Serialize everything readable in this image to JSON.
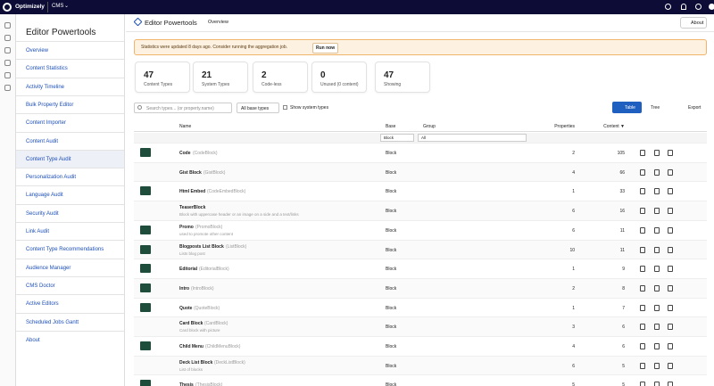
{
  "topbar": {
    "brand": "Optimizely",
    "product": "CMS"
  },
  "sidebar": {
    "title": "Editor Powertools",
    "active": 6,
    "items": [
      "Overview",
      "Content Statistics",
      "Activity Timeline",
      "Bulk Property Editor",
      "Content Importer",
      "Content Audit",
      "Content Type Audit",
      "Personalization Audit",
      "Language Audit",
      "Security Audit",
      "Link Audit",
      "Content Type Recommendations",
      "Audience Manager",
      "CMS Doctor",
      "Active Editors",
      "Scheduled Jobs Gantt",
      "About"
    ]
  },
  "header": {
    "title": "Editor Powertools",
    "tab": "Overview",
    "about": "About"
  },
  "alert": {
    "text": "Statistics were updated 8 days ago. Consider running the aggregation job.",
    "action": "Run now"
  },
  "stats": [
    {
      "value": "47",
      "label": "Content Types"
    },
    {
      "value": "21",
      "label": "System Types"
    },
    {
      "value": "2",
      "label": "Code-less"
    },
    {
      "value": "0",
      "label": "Unused (0 content)"
    },
    {
      "value": "47",
      "label": "Showing"
    }
  ],
  "toolbar": {
    "search_placeholder": "Search types... (or property.name)",
    "filter": "All base types",
    "checkbox": "Show system types",
    "views": [
      "Table",
      "Tree"
    ],
    "export": "Export"
  },
  "table": {
    "columns": [
      "Name",
      "Base",
      "Group",
      "Properties",
      "Content ▼"
    ],
    "filters": [
      "Block",
      "All"
    ],
    "rows": [
      {
        "icon": true,
        "name": "Code",
        "code": "(CodeBlock)",
        "desc": "",
        "base": "Block",
        "properties": "2",
        "content": "105"
      },
      {
        "icon": false,
        "name": "Gist Block",
        "code": "(GistBlock)",
        "desc": "",
        "base": "Block",
        "properties": "4",
        "content": "66"
      },
      {
        "icon": true,
        "name": "Html Embed",
        "code": "(CodeEmbedBlock)",
        "desc": "",
        "base": "Block",
        "properties": "1",
        "content": "33"
      },
      {
        "icon": false,
        "name": "TeaserBlock",
        "code": "",
        "desc": "Block with uppercase header or an image on a side and a text/links",
        "base": "Block",
        "properties": "6",
        "content": "16"
      },
      {
        "icon": true,
        "name": "Promo",
        "code": "(PromoBlock)",
        "desc": "used to promote other content",
        "base": "Block",
        "properties": "6",
        "content": "11"
      },
      {
        "icon": true,
        "name": "Blogposts List Block",
        "code": "(ListBlock)",
        "desc": "Lists blog post",
        "base": "Block",
        "properties": "10",
        "content": "11"
      },
      {
        "icon": true,
        "name": "Editorial",
        "code": "(EditorialBlock)",
        "desc": "",
        "base": "Block",
        "properties": "1",
        "content": "9"
      },
      {
        "icon": true,
        "name": "Intro",
        "code": "(IntroBlock)",
        "desc": "",
        "base": "Block",
        "properties": "2",
        "content": "8"
      },
      {
        "icon": true,
        "name": "Quote",
        "code": "(QuoteBlock)",
        "desc": "",
        "base": "Block",
        "properties": "1",
        "content": "7"
      },
      {
        "icon": false,
        "name": "Card Block",
        "code": "(CardBlock)",
        "desc": "Card block with picture",
        "base": "Block",
        "properties": "3",
        "content": "6"
      },
      {
        "icon": true,
        "name": "Child Menu",
        "code": "(ChildMenuBlock)",
        "desc": "",
        "base": "Block",
        "properties": "4",
        "content": "6"
      },
      {
        "icon": false,
        "name": "Deck List Block",
        "code": "(DeckListBlock)",
        "desc": "List of blocks",
        "base": "Block",
        "properties": "6",
        "content": "5"
      },
      {
        "icon": true,
        "name": "Thesis",
        "code": "(ThesisBlock)",
        "desc": "",
        "base": "Block",
        "properties": "5",
        "content": "5"
      }
    ]
  }
}
